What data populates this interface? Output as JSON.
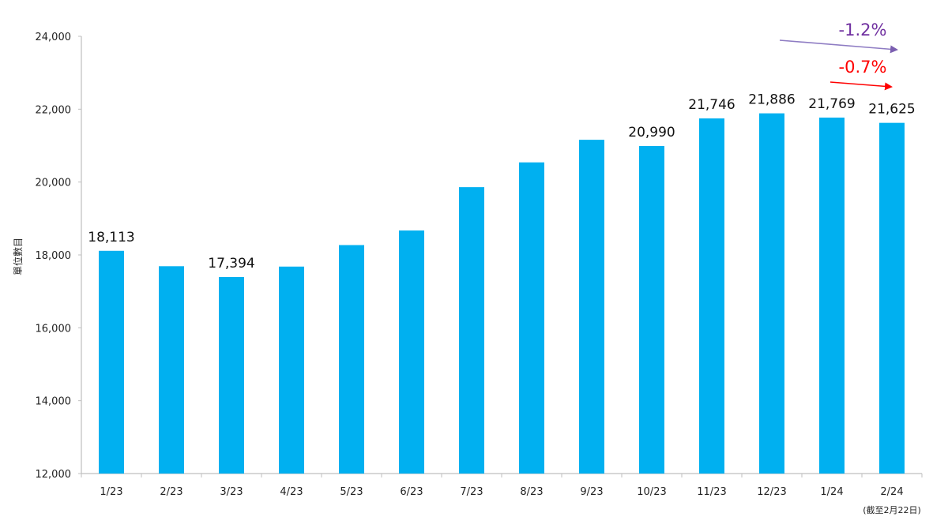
{
  "chart_data": {
    "type": "bar",
    "title": "",
    "xlabel": "",
    "ylabel": "單位數目",
    "ylim": [
      12000,
      24000
    ],
    "yticks": [
      12000,
      14000,
      16000,
      18000,
      20000,
      22000,
      24000
    ],
    "ytick_labels": [
      "12,000",
      "14,000",
      "16,000",
      "18,000",
      "20,000",
      "22,000",
      "24,000"
    ],
    "grid": false,
    "legend": null,
    "bar_color": "#00B0F0",
    "categories": [
      "1/23",
      "2/23",
      "3/23",
      "4/23",
      "5/23",
      "6/23",
      "7/23",
      "8/23",
      "9/23",
      "10/23",
      "11/23",
      "12/23",
      "1/24",
      "2/24"
    ],
    "category_sublabels": {
      "2/24": "(截至2月22日)"
    },
    "values": [
      18113,
      17690,
      17394,
      17680,
      18270,
      18670,
      19860,
      20540,
      21160,
      20990,
      21746,
      21886,
      21769,
      21625
    ],
    "data_labels": {
      "1/23": "18,113",
      "3/23": "17,394",
      "10/23": "20,990",
      "11/23": "21,746",
      "12/23": "21,886",
      "1/24": "21,769",
      "2/24": "21,625"
    },
    "annotations": [
      {
        "text": "-1.2%",
        "color": "#7030A0",
        "arrow_from": "12/23",
        "arrow_to": "2/24",
        "arrow_color": "#7B5FB0"
      },
      {
        "text": "-0.7%",
        "color": "#FF0000",
        "arrow_from": "1/24",
        "arrow_to": "2/24",
        "arrow_color": "#FF0000"
      }
    ]
  }
}
